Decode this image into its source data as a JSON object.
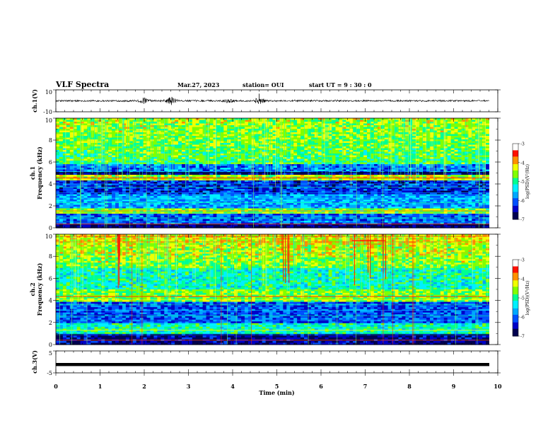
{
  "header": {
    "title": "VLF Spectra",
    "date": "Mar.27, 2023",
    "station": "station= OUI",
    "start": "start  UT =   9 : 30 : 0"
  },
  "colors": {
    "colormap": [
      "#000080",
      "#0000ff",
      "#00a0ff",
      "#00ffff",
      "#00ff80",
      "#80ff00",
      "#ffff00",
      "#ff8000",
      "#ff0000",
      "#ffffff"
    ]
  },
  "chart_data": [
    {
      "type": "line",
      "name": "ch1-waveform",
      "ylabel": "ch.1(V)",
      "xlim": [
        0,
        10
      ],
      "ylim": [
        -10,
        10
      ],
      "yticks": [
        -10,
        10
      ],
      "baseline": 0,
      "bursts": [
        {
          "x": 2.0,
          "amp": 2.5
        },
        {
          "x": 2.6,
          "amp": 3.5
        },
        {
          "x": 3.9,
          "amp": 1.5
        },
        {
          "x": 4.6,
          "amp": 2.5
        }
      ]
    },
    {
      "type": "heatmap",
      "name": "ch1-spectrogram",
      "ylabel": "ch.1\nFrequency (kHz)",
      "xlim": [
        0,
        9.8
      ],
      "ylim": [
        0,
        10
      ],
      "yticks": [
        0,
        2,
        4,
        6,
        8,
        10
      ],
      "colorbar": {
        "min": -7,
        "max": -3,
        "ticks": [
          -7,
          -6,
          -5,
          -4,
          -3
        ],
        "label": "log(PSD)(V²/Hz)"
      }
    },
    {
      "type": "heatmap",
      "name": "ch2-spectrogram",
      "ylabel": "ch.2\nFrequency (kHz)",
      "xlim": [
        0,
        9.8
      ],
      "ylim": [
        0,
        10
      ],
      "yticks": [
        0,
        2,
        4,
        6,
        8,
        10
      ],
      "colorbar": {
        "min": -7,
        "max": -3,
        "ticks": [
          -7,
          -6,
          -5,
          -4,
          -3
        ],
        "label": "log(PSD)(V²/Hz)"
      }
    },
    {
      "type": "line",
      "name": "ch3-waveform",
      "ylabel": "ch.3(V)",
      "xlim": [
        0,
        10
      ],
      "ylim": [
        -5,
        5
      ],
      "yticks": [
        -5,
        5
      ],
      "baseline": -1.2,
      "xlabel": "Time (min)",
      "xticks": [
        0,
        1,
        2,
        3,
        4,
        5,
        6,
        7,
        8,
        9,
        10
      ]
    }
  ]
}
